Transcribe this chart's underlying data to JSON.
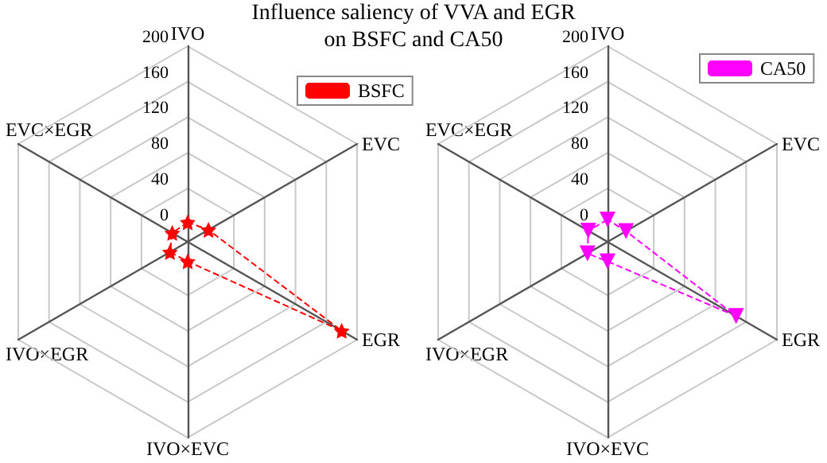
{
  "chart_data": [
    {
      "type": "radar",
      "title": "Influence saliency of VVA and EGR on BSFC and CA50",
      "categories": [
        "IVO",
        "EVC",
        "EGR",
        "IVO×EVC",
        "IVO×EGR",
        "EVC×EGR"
      ],
      "ylim": [
        -20,
        200
      ],
      "yticks": [
        0,
        40,
        80,
        120,
        160,
        200
      ],
      "legend": "top right",
      "marker": "star",
      "line_style": "dashed",
      "series": [
        {
          "name": "BSFC",
          "color": "#ff0000",
          "values": [
            2,
            7,
            180,
            2,
            3,
            0
          ]
        }
      ]
    },
    {
      "type": "radar",
      "categories": [
        "IVO",
        "EVC",
        "EGR",
        "IVO×EVC",
        "IVO×EGR",
        "EVC×EGR"
      ],
      "ylim": [
        -20,
        200
      ],
      "yticks": [
        0,
        40,
        80,
        120,
        160,
        200
      ],
      "legend": "top right",
      "marker": "triangle",
      "line_style": "dashed",
      "series": [
        {
          "name": "CA50",
          "color": "#ff00ff",
          "values": [
            5,
            4,
            147,
            2,
            6,
            5
          ]
        }
      ]
    }
  ]
}
